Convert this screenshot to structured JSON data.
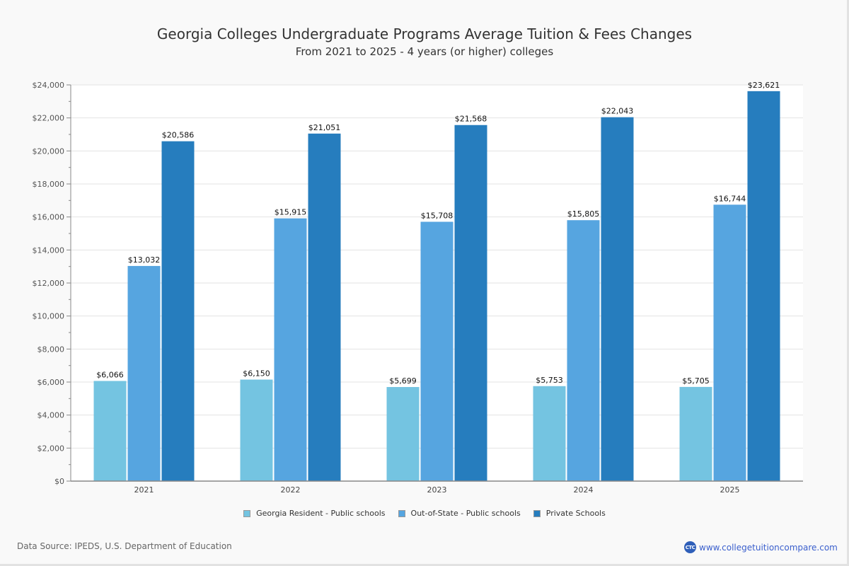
{
  "chart_data": {
    "type": "bar",
    "title": "Georgia Colleges Undergraduate Programs Average Tuition & Fees Changes",
    "subtitle": "From 2021 to 2025 - 4 years (or higher) colleges",
    "xlabel": "",
    "ylabel": "",
    "categories": [
      "2021",
      "2022",
      "2023",
      "2024",
      "2025"
    ],
    "series": [
      {
        "name": "Georgia Resident - Public schools",
        "color": "#74c4e1",
        "values": [
          6066,
          6150,
          5699,
          5753,
          5705
        ],
        "labels": [
          "$6,066",
          "$6,150",
          "$5,699",
          "$5,753",
          "$5,705"
        ]
      },
      {
        "name": "Out-of-State - Public schools",
        "color": "#56a5e0",
        "values": [
          13032,
          15915,
          15708,
          15805,
          16744
        ],
        "labels": [
          "$13,032",
          "$15,915",
          "$15,708",
          "$15,805",
          "$16,744"
        ]
      },
      {
        "name": "Private Schools",
        "color": "#267dbe",
        "values": [
          20586,
          21051,
          21568,
          22043,
          23621
        ],
        "labels": [
          "$20,586",
          "$21,051",
          "$21,568",
          "$22,043",
          "$23,621"
        ]
      }
    ],
    "ylim": [
      0,
      24000
    ],
    "yticks": [
      0,
      2000,
      4000,
      6000,
      8000,
      10000,
      12000,
      14000,
      16000,
      18000,
      20000,
      22000,
      24000
    ],
    "ytick_labels": [
      "$0",
      "$2,000",
      "$4,000",
      "$6,000",
      "$8,000",
      "$10,000",
      "$12,000",
      "$14,000",
      "$16,000",
      "$18,000",
      "$20,000",
      "$22,000",
      "$24,000"
    ],
    "grid": true,
    "legend_position": "bottom-center"
  },
  "footer": {
    "source": "Data Source: IPEDS, U.S. Department of Education",
    "brand_logo": "CTC",
    "brand_url": "www.collegetuitioncompare.com"
  }
}
